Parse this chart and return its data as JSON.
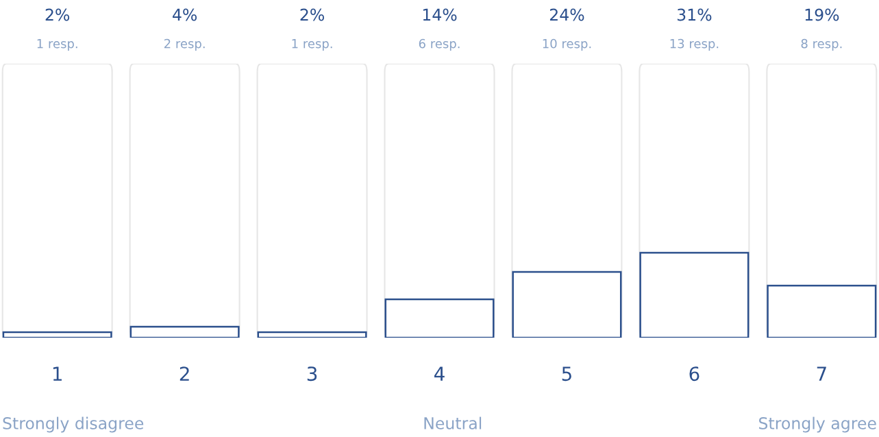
{
  "chart_data": {
    "type": "bar",
    "categories": [
      "1",
      "2",
      "3",
      "4",
      "5",
      "6",
      "7"
    ],
    "values": [
      2,
      4,
      2,
      14,
      24,
      31,
      19
    ],
    "value_labels": [
      "2%",
      "4%",
      "2%",
      "14%",
      "24%",
      "31%",
      "19%"
    ],
    "color": "#2b4f8c",
    "ylim": [
      0,
      100
    ],
    "tick_labels": "x",
    "grid": false,
    "annotations": [
      "1 resp.",
      "2 resp.",
      "1 resp.",
      "6 resp.",
      "10 resp.",
      "13 resp.",
      "8 resp.",
      "Strongly disagree",
      "Neutral",
      "Strongly agree"
    ]
  }
}
